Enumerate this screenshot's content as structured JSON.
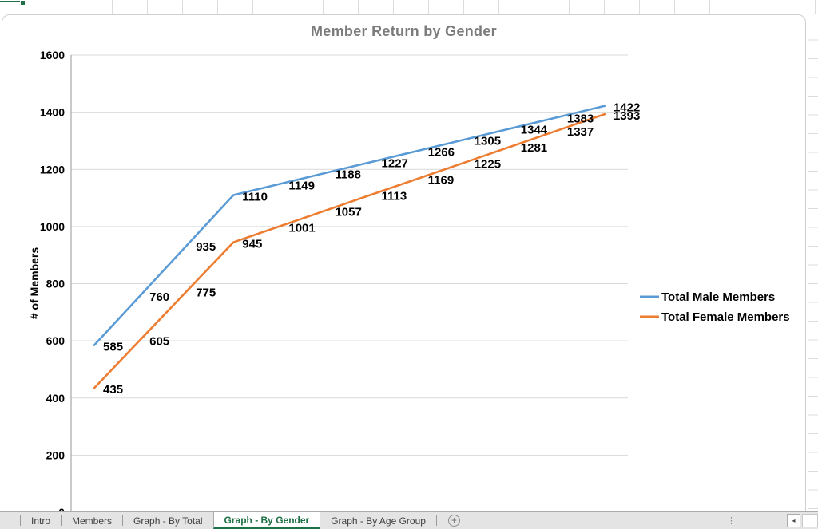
{
  "chart_data": {
    "type": "line",
    "title": "Member Return by Gender",
    "xlabel": "",
    "ylabel": "# of Members",
    "ylim": [
      0,
      1600
    ],
    "ytick_step": 200,
    "grid": true,
    "data_labels": true,
    "legend_position": "right",
    "series": [
      {
        "name": "Total Male Members",
        "color": "#5B9BD5",
        "values": [
          585,
          760,
          935,
          1110,
          1149,
          1188,
          1227,
          1266,
          1305,
          1344,
          1383,
          1422
        ]
      },
      {
        "name": "Total Female Members",
        "color": "#ED7D31",
        "values": [
          435,
          605,
          775,
          945,
          1001,
          1057,
          1113,
          1169,
          1225,
          1281,
          1337,
          1393
        ]
      }
    ]
  },
  "colors": {
    "gridline": "#d9d9d9",
    "axis_line": "#a6a6a6",
    "title_gray": "#7b7b7b",
    "data_label": "#000000",
    "excel_green": "#1e7145"
  },
  "sheet_bar": {
    "tabs": [
      {
        "label": "Intro",
        "active": false
      },
      {
        "label": "Members",
        "active": false
      },
      {
        "label": "Graph - By Total",
        "active": false
      },
      {
        "label": "Graph - By Gender",
        "active": true
      },
      {
        "label": "Graph - By Age Group",
        "active": false
      }
    ],
    "icons": {
      "add_sheet": "+",
      "scroll_left": "◂",
      "tab_resize_handle": "⋮"
    }
  }
}
